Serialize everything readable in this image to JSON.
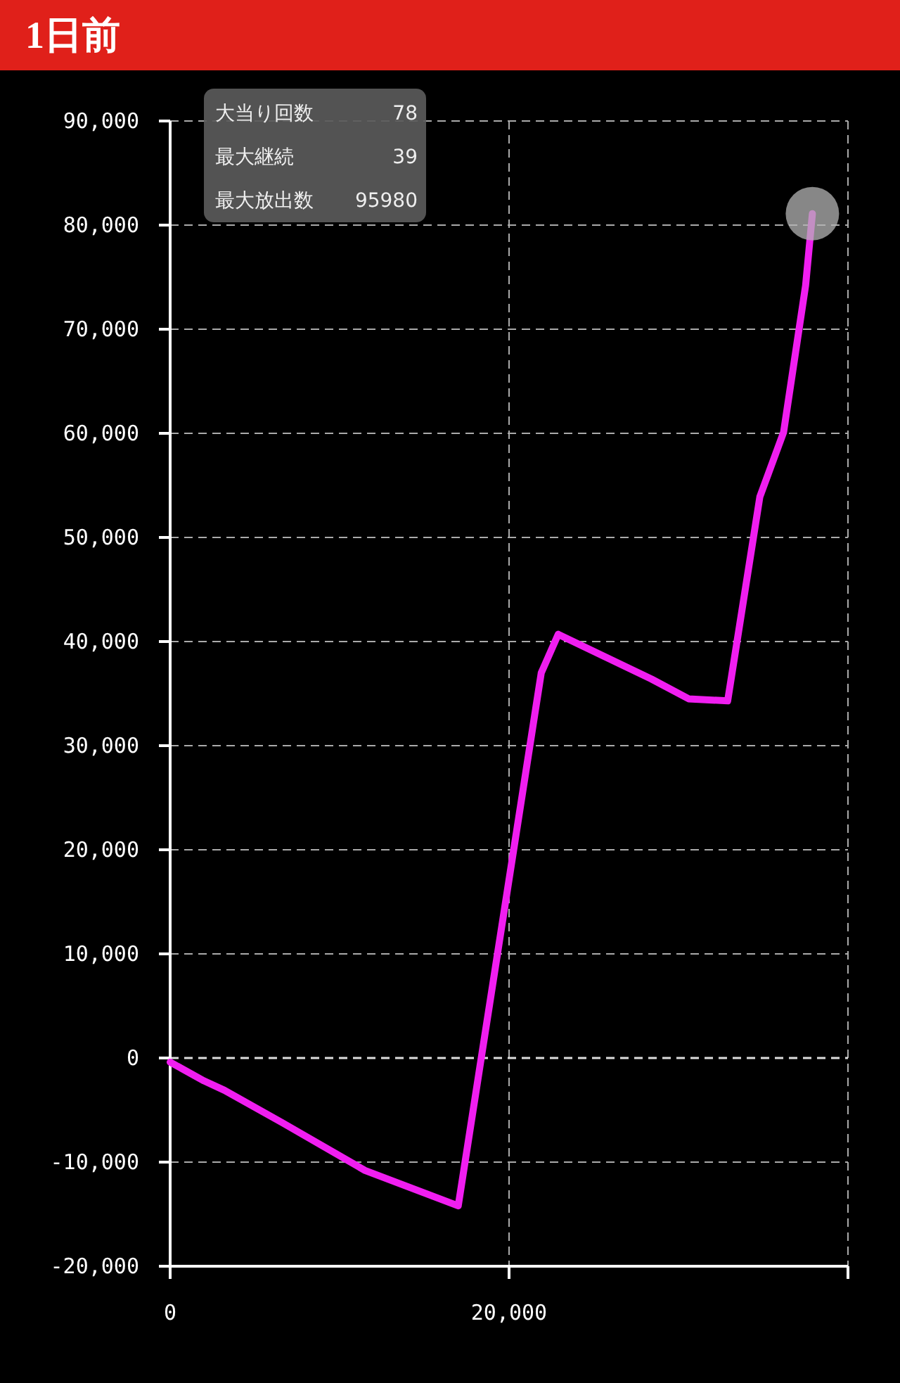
{
  "chart_data": {
    "type": "line",
    "title": "1日前",
    "x": [
      0,
      2000,
      3200,
      6600,
      11500,
      17000,
      21900,
      22900,
      28400,
      30600,
      32900,
      34800,
      36200,
      37500,
      37900
    ],
    "series": [
      {
        "type": "line",
        "color": "#f01ef0",
        "values": [
          -400,
          -2200,
          -3100,
          -6200,
          -10800,
          -14200,
          37000,
          40700,
          36400,
          34500,
          34300,
          53900,
          60100,
          74200,
          81100
        ]
      },
      {
        "type": "scatter",
        "color": "#b4b4b4",
        "x": [
          37900
        ],
        "values": [
          81100
        ]
      }
    ],
    "xlim": [
      0,
      40000
    ],
    "xticks": [
      {
        "value": 0,
        "label": "0"
      },
      {
        "value": 20000,
        "label": "20,000"
      },
      {
        "value": 40000,
        "label": null
      }
    ],
    "ylim": [
      -20000,
      90000
    ],
    "yticks": [
      {
        "value": -20000,
        "label": "-20,000"
      },
      {
        "value": -10000,
        "label": "-10,000"
      },
      {
        "value": 0,
        "label": "0"
      },
      {
        "value": 10000,
        "label": "10,000"
      },
      {
        "value": 20000,
        "label": "20,000"
      },
      {
        "value": 30000,
        "label": "30,000"
      },
      {
        "value": 40000,
        "label": "40,000"
      },
      {
        "value": 50000,
        "label": "50,000"
      },
      {
        "value": 60000,
        "label": "60,000"
      },
      {
        "value": 70000,
        "label": "70,000"
      },
      {
        "value": 80000,
        "label": "80,000"
      },
      {
        "value": 90000,
        "label": "90,000"
      }
    ],
    "grid": true,
    "ref_lines": [
      {
        "axis": "y",
        "value": 0,
        "color": "#dddddd",
        "line_style": "dashed"
      }
    ],
    "annotations": [
      "大当り回数",
      "78",
      "最大継続",
      "39",
      "最大放出数",
      "95980"
    ]
  }
}
